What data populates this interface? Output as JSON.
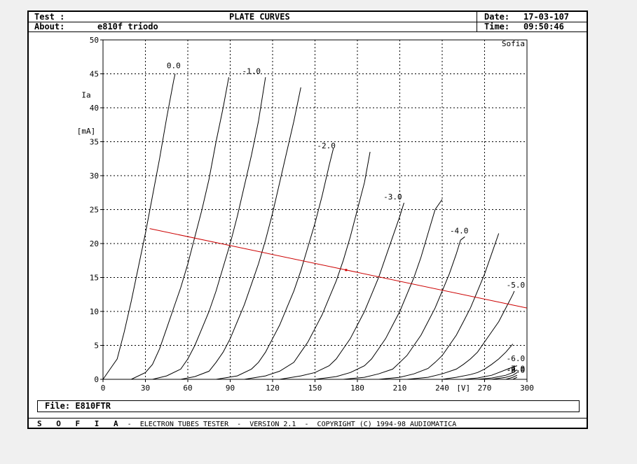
{
  "header": {
    "test_label": "Test :",
    "title": "PLATE CURVES",
    "date_label": "Date:",
    "date_value": "17-03-107",
    "about_label": "About:",
    "about_value": "e810f triodo",
    "time_label": "Time:",
    "time_value": "09:50:46"
  },
  "file": {
    "label": "File:",
    "value": "E810FTR"
  },
  "footer": {
    "brand": "S O F I A",
    "text": " -  ELECTRON TUBES TESTER  -  VERSION 2.1  -  COPYRIGHT (C) 1994-98 AUDIOMATICA"
  },
  "colors": {
    "curve": "#000000",
    "load_line": "#cc0000",
    "grid": "#000000",
    "background": "#ffffff"
  },
  "chart_data": {
    "type": "line",
    "title": "PLATE CURVES",
    "watermark": "Sofia",
    "ylabel_top": "Ia",
    "ylabel_unit": "[mA]",
    "xlabel": "[V]",
    "xlim": [
      0,
      300
    ],
    "ylim": [
      0,
      50
    ],
    "xticks": [
      "0",
      "30",
      "60",
      "90",
      "120",
      "150",
      "180",
      "210",
      "240",
      "270",
      "300"
    ],
    "yticks": [
      "0",
      "5",
      "10",
      "15",
      "20",
      "25",
      "30",
      "35",
      "40",
      "45",
      "50"
    ],
    "grid": true,
    "series": [
      {
        "name": "0.0",
        "label_at": [
          50,
          45.8
        ],
        "values": [
          [
            0,
            0
          ],
          [
            5,
            1.5
          ],
          [
            10,
            3
          ],
          [
            15,
            7
          ],
          [
            20,
            11.5
          ],
          [
            25,
            16.5
          ],
          [
            30,
            21.5
          ],
          [
            35,
            27
          ],
          [
            40,
            32.5
          ],
          [
            45,
            38.5
          ],
          [
            50,
            44
          ],
          [
            51,
            45
          ]
        ]
      },
      {
        "values": [
          [
            20,
            0
          ],
          [
            30,
            1
          ],
          [
            35,
            2.2
          ],
          [
            40,
            4.5
          ],
          [
            45,
            7.5
          ],
          [
            50,
            10.5
          ],
          [
            55,
            13.5
          ],
          [
            60,
            17
          ],
          [
            65,
            21
          ],
          [
            70,
            25
          ],
          [
            75,
            29.5
          ],
          [
            80,
            35
          ],
          [
            85,
            40
          ],
          [
            89,
            44.5
          ]
        ]
      },
      {
        "name": "-1.0",
        "label_at": [
          105,
          45
        ],
        "values": [
          [
            35,
            0
          ],
          [
            45,
            0.5
          ],
          [
            55,
            1.5
          ],
          [
            60,
            3
          ],
          [
            65,
            5
          ],
          [
            70,
            7.5
          ],
          [
            75,
            10
          ],
          [
            80,
            13
          ],
          [
            85,
            16.5
          ],
          [
            90,
            20
          ],
          [
            95,
            24
          ],
          [
            100,
            28.5
          ],
          [
            105,
            33
          ],
          [
            110,
            38
          ],
          [
            115,
            44.5
          ]
        ]
      },
      {
        "values": [
          [
            55,
            0
          ],
          [
            65,
            0.4
          ],
          [
            75,
            1.2
          ],
          [
            80,
            2.5
          ],
          [
            85,
            4
          ],
          [
            90,
            6
          ],
          [
            95,
            8.5
          ],
          [
            100,
            11
          ],
          [
            105,
            14
          ],
          [
            110,
            17
          ],
          [
            115,
            20.5
          ],
          [
            120,
            24.5
          ],
          [
            125,
            29
          ],
          [
            130,
            33.5
          ],
          [
            135,
            38
          ],
          [
            140,
            43
          ]
        ]
      },
      {
        "name": "-2.0",
        "label_at": [
          158,
          34
        ],
        "values": [
          [
            80,
            0
          ],
          [
            95,
            0.5
          ],
          [
            105,
            1.5
          ],
          [
            110,
            2.5
          ],
          [
            115,
            4
          ],
          [
            120,
            6
          ],
          [
            125,
            8
          ],
          [
            130,
            10.5
          ],
          [
            135,
            13
          ],
          [
            140,
            16
          ],
          [
            145,
            19.5
          ],
          [
            150,
            23
          ],
          [
            155,
            27
          ],
          [
            160,
            31.5
          ],
          [
            163,
            34
          ]
        ]
      },
      {
        "values": [
          [
            100,
            0
          ],
          [
            115,
            0.5
          ],
          [
            125,
            1.2
          ],
          [
            135,
            2.5
          ],
          [
            140,
            4
          ],
          [
            145,
            5.5
          ],
          [
            150,
            7.5
          ],
          [
            155,
            9.5
          ],
          [
            160,
            12
          ],
          [
            165,
            14.5
          ],
          [
            170,
            17.5
          ],
          [
            175,
            21
          ],
          [
            180,
            25
          ],
          [
            185,
            29
          ],
          [
            189,
            33.5
          ]
        ]
      },
      {
        "name": "-3.0",
        "label_at": [
          205,
          26.5
        ],
        "values": [
          [
            125,
            0
          ],
          [
            140,
            0.5
          ],
          [
            150,
            1
          ],
          [
            160,
            2
          ],
          [
            165,
            3
          ],
          [
            170,
            4.5
          ],
          [
            175,
            6
          ],
          [
            180,
            8
          ],
          [
            185,
            10
          ],
          [
            190,
            12.5
          ],
          [
            195,
            15
          ],
          [
            200,
            18
          ],
          [
            205,
            21
          ],
          [
            210,
            24
          ],
          [
            213,
            26
          ]
        ]
      },
      {
        "values": [
          [
            150,
            0
          ],
          [
            165,
            0.4
          ],
          [
            175,
            1
          ],
          [
            185,
            2
          ],
          [
            190,
            3
          ],
          [
            195,
            4.5
          ],
          [
            200,
            6
          ],
          [
            205,
            8
          ],
          [
            210,
            10
          ],
          [
            215,
            12.5
          ],
          [
            220,
            15
          ],
          [
            225,
            18
          ],
          [
            230,
            21.5
          ],
          [
            235,
            25
          ],
          [
            240,
            26.5
          ]
        ]
      },
      {
        "name": "-4.0",
        "label_at": [
          252,
          21.5
        ],
        "values": [
          [
            170,
            0
          ],
          [
            185,
            0.3
          ],
          [
            195,
            0.8
          ],
          [
            205,
            1.5
          ],
          [
            210,
            2.5
          ],
          [
            215,
            3.5
          ],
          [
            220,
            5
          ],
          [
            225,
            6.5
          ],
          [
            230,
            8.5
          ],
          [
            235,
            10.5
          ],
          [
            240,
            13
          ],
          [
            245,
            15.5
          ],
          [
            250,
            18.5
          ],
          [
            253,
            20.5
          ],
          [
            256,
            21
          ]
        ]
      },
      {
        "values": [
          [
            195,
            0
          ],
          [
            210,
            0.3
          ],
          [
            220,
            0.8
          ],
          [
            230,
            1.6
          ],
          [
            235,
            2.5
          ],
          [
            240,
            3.5
          ],
          [
            245,
            5
          ],
          [
            250,
            6.5
          ],
          [
            255,
            8.5
          ],
          [
            260,
            10.5
          ],
          [
            265,
            13
          ],
          [
            270,
            15.5
          ],
          [
            275,
            18.5
          ],
          [
            280,
            21.5
          ]
        ]
      },
      {
        "name": "-5.0",
        "label_at": [
          292,
          13.5
        ],
        "values": [
          [
            215,
            0
          ],
          [
            230,
            0.3
          ],
          [
            240,
            0.8
          ],
          [
            250,
            1.5
          ],
          [
            255,
            2.2
          ],
          [
            260,
            3
          ],
          [
            265,
            4
          ],
          [
            270,
            5.5
          ],
          [
            275,
            7
          ],
          [
            280,
            8.5
          ],
          [
            285,
            10.5
          ],
          [
            290,
            12.5
          ],
          [
            291,
            13
          ]
        ]
      },
      {
        "values": [
          [
            240,
            0
          ],
          [
            250,
            0.3
          ],
          [
            260,
            0.7
          ],
          [
            265,
            1
          ],
          [
            270,
            1.5
          ],
          [
            275,
            2.2
          ],
          [
            280,
            3
          ],
          [
            285,
            4
          ],
          [
            290,
            5.2
          ]
        ]
      },
      {
        "name": "-6.0",
        "label_at": [
          292,
          2.7
        ],
        "values": [
          [
            255,
            0
          ],
          [
            265,
            0.2
          ],
          [
            275,
            0.6
          ],
          [
            280,
            1
          ],
          [
            285,
            1.4
          ],
          [
            290,
            1.8
          ],
          [
            293,
            2
          ]
        ]
      },
      {
        "values": [
          [
            265,
            0
          ],
          [
            275,
            0.2
          ],
          [
            285,
            0.6
          ],
          [
            290,
            1
          ],
          [
            293,
            1.4
          ]
        ]
      },
      {
        "name": "-7.0",
        "label_at": [
          292,
          1.2
        ],
        "values": [
          [
            275,
            0
          ],
          [
            285,
            0.3
          ],
          [
            290,
            0.6
          ],
          [
            293,
            1.0
          ]
        ]
      },
      {
        "name": "-8.0",
        "label_at": [
          292,
          1.0
        ],
        "values": [
          [
            285,
            0
          ],
          [
            290,
            0.3
          ],
          [
            293,
            0.6
          ]
        ]
      },
      {
        "name": "-9.0",
        "label_at": [
          292,
          1.0
        ],
        "values": [
          [
            290,
            0
          ],
          [
            293,
            0.3
          ]
        ]
      }
    ],
    "load_line": {
      "values": [
        [
          33,
          22.2
        ],
        [
          300,
          10.5
        ]
      ],
      "operating_point": [
        172,
        16.1
      ]
    }
  }
}
